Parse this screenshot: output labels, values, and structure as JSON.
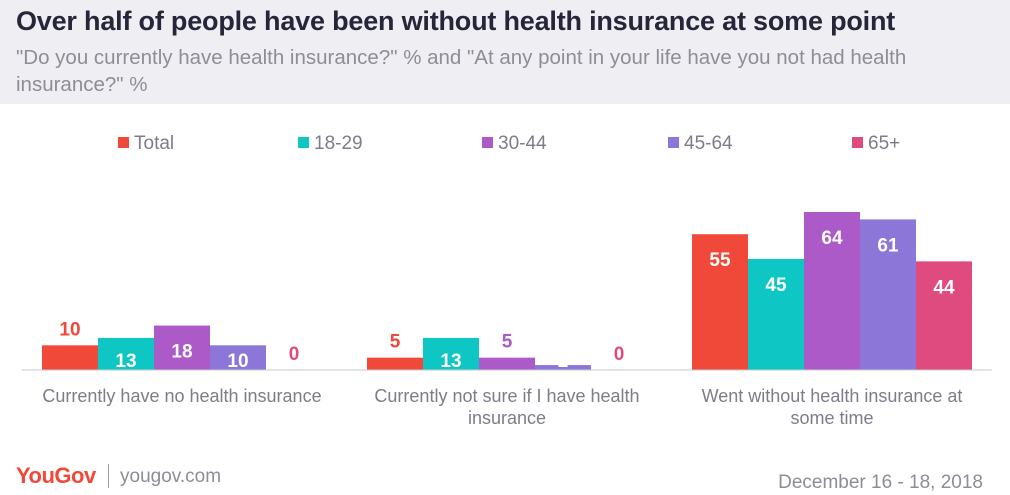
{
  "header": {
    "title": "Over half of people have been without health insurance at some point",
    "subtitle": "\"Do you currently have health insurance?\" % and \"At any point in your life have you not had health insurance?\" %"
  },
  "footer": {
    "logo": "YouGov",
    "site": "yougov.com",
    "date": "December 16 - 18, 2018"
  },
  "colors": {
    "Total": "#f0493a",
    "18-29": "#0ec6c3",
    "30-44": "#ab5ac8",
    "45-64": "#8c76d8",
    "65+": "#df4a7f"
  },
  "chart_data": {
    "type": "bar",
    "title": "Over half of people have been without health insurance at some point",
    "categories": [
      "Currently have no health insurance",
      "Currently not sure if I have health insurance",
      "Went without health insurance at some time"
    ],
    "series": [
      {
        "name": "Total",
        "values": [
          10,
          5,
          55
        ]
      },
      {
        "name": "18-29",
        "values": [
          13,
          13,
          45
        ]
      },
      {
        "name": "30-44",
        "values": [
          18,
          5,
          64
        ]
      },
      {
        "name": "45-64",
        "values": [
          10,
          2,
          61
        ]
      },
      {
        "name": "65+",
        "values": [
          0,
          0,
          44
        ]
      }
    ],
    "ylim": [
      0,
      64
    ],
    "legend_position": "top",
    "grid": false
  }
}
